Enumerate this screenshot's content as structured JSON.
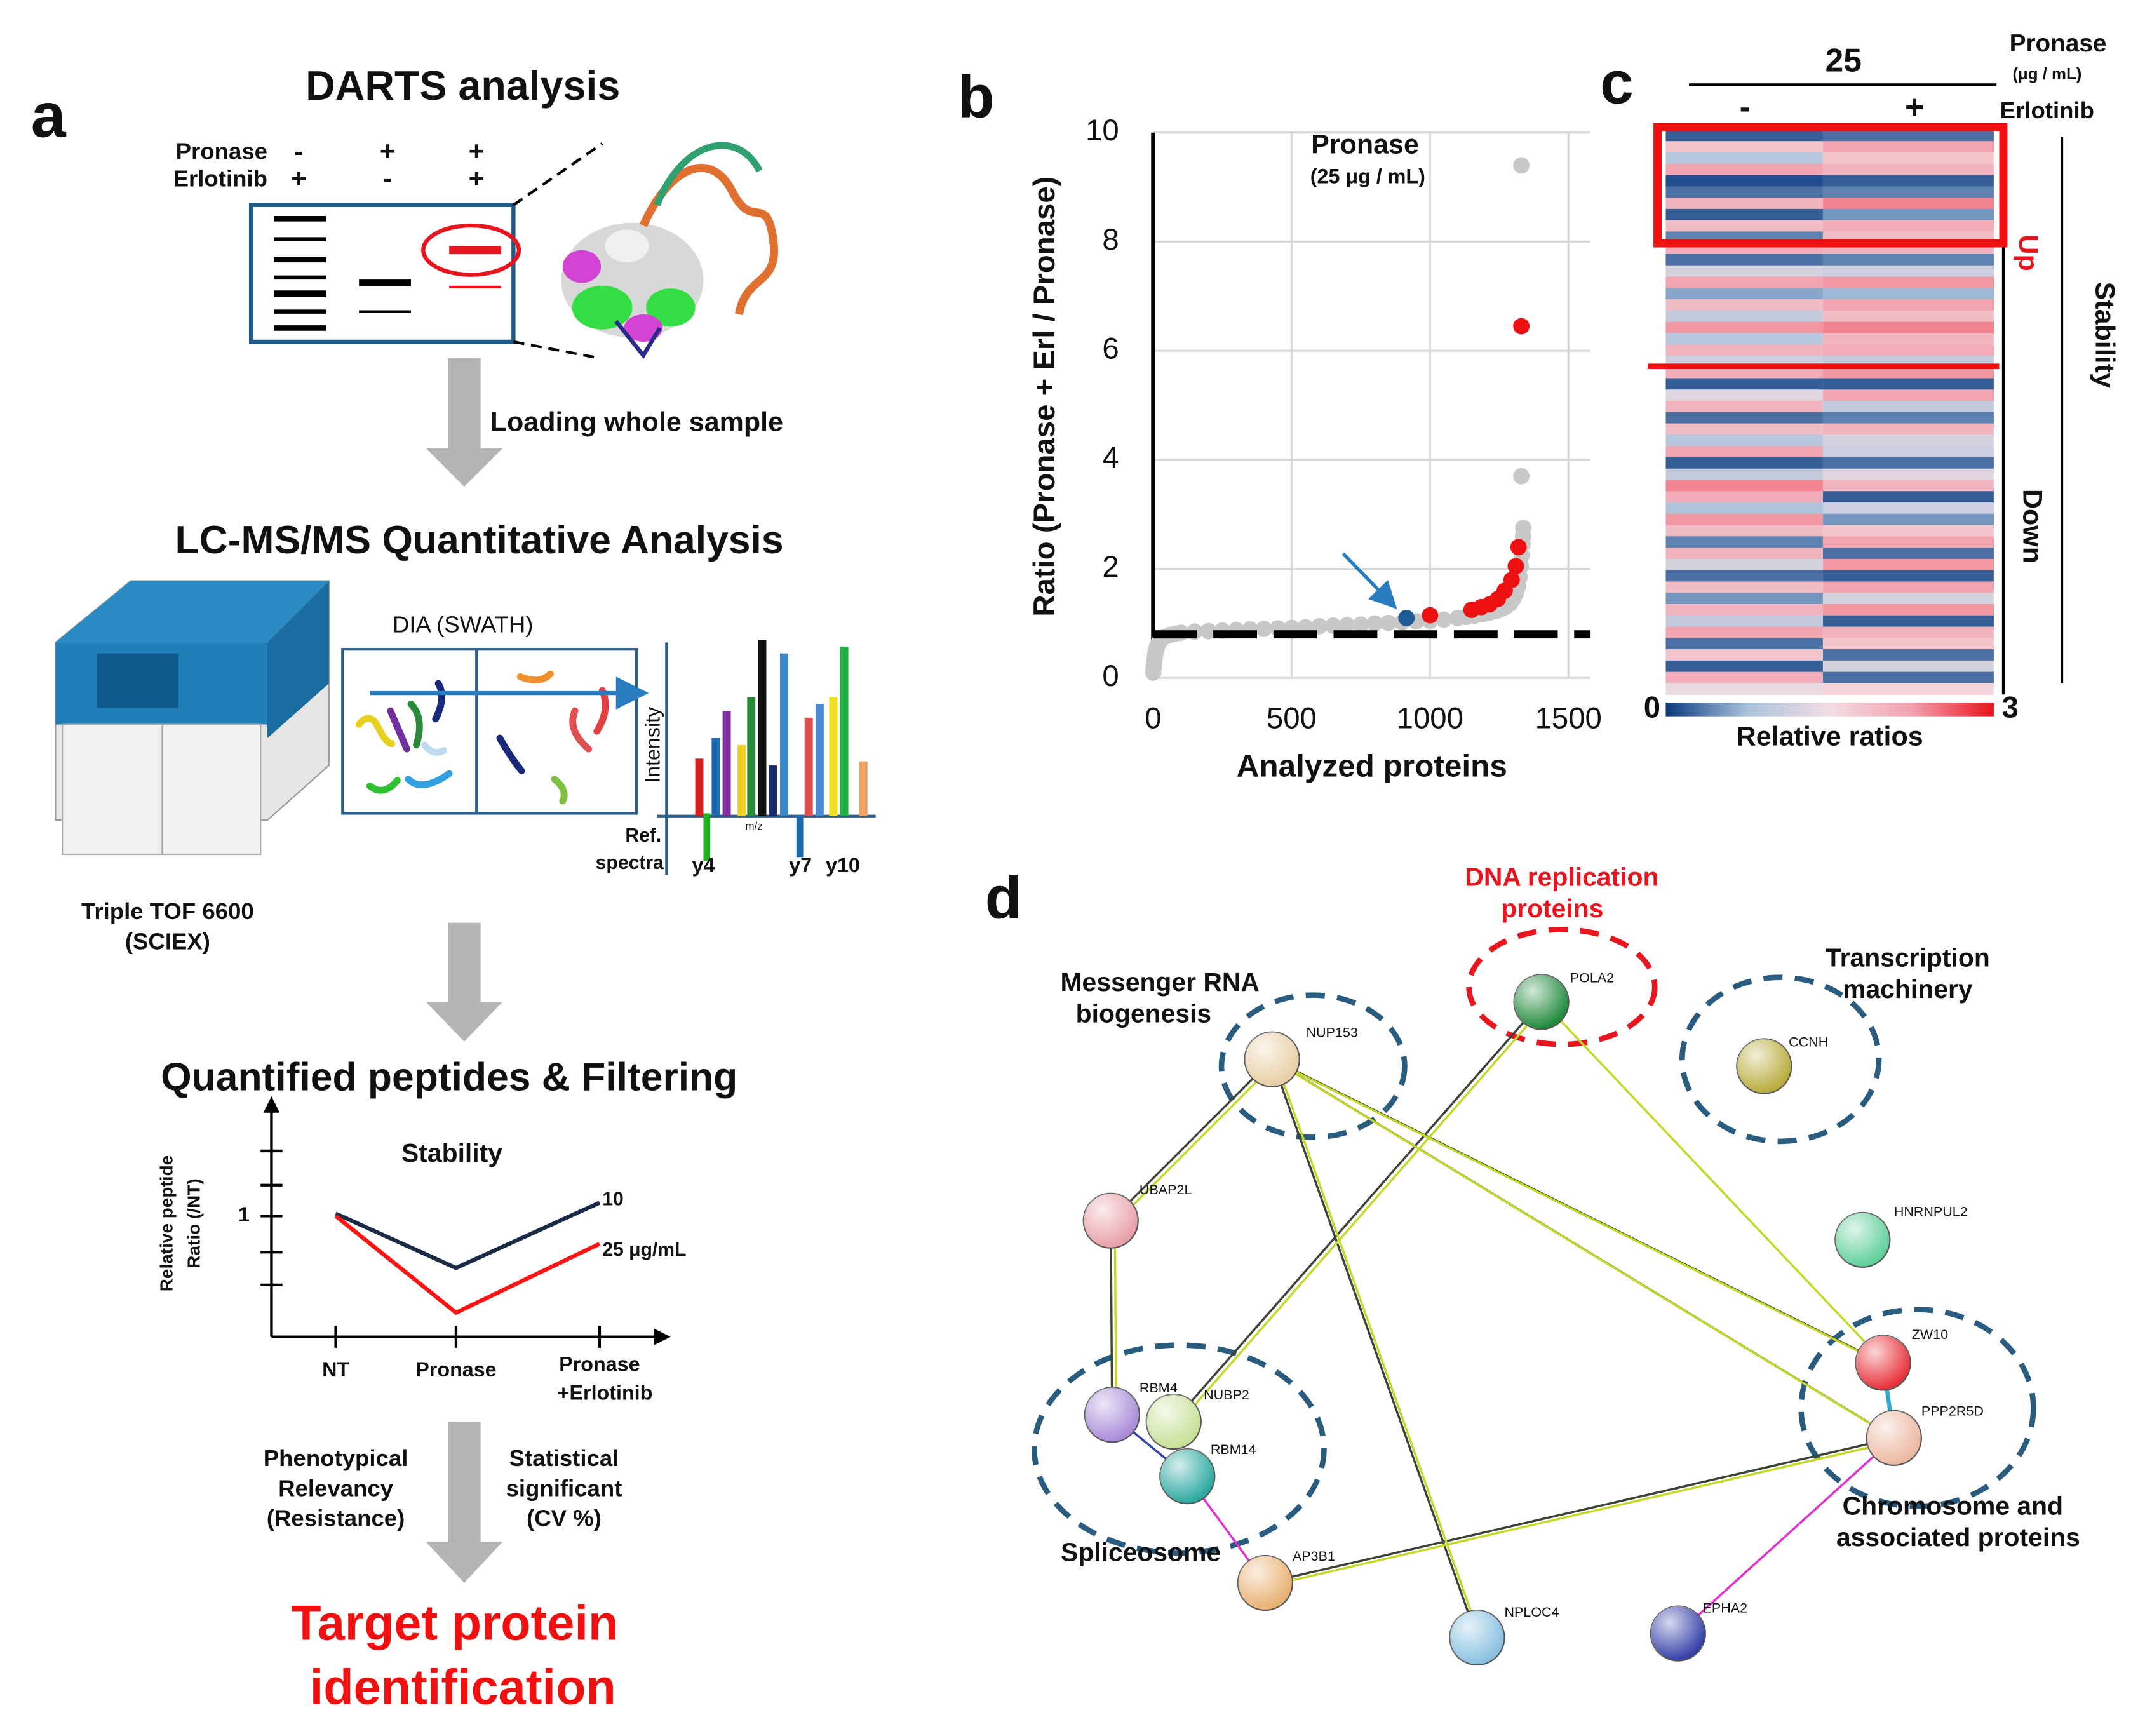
{
  "panel_a": {
    "label": "a",
    "title": "DARTS analysis",
    "gel_rows": [
      {
        "name": "Pronase",
        "marks": [
          "-",
          "+",
          "+"
        ]
      },
      {
        "name": "Erlotinib",
        "marks": [
          "+",
          "-",
          "+"
        ]
      }
    ],
    "step1": "Loading whole sample",
    "lcms_title": "LC-MS/MS Quantitative Analysis",
    "instrument": [
      "Triple TOF 6600",
      "(SCIEX)"
    ],
    "dia_title": "DIA (SWATH)",
    "spectrum": {
      "y_label": "Intensity",
      "x_label": "m/z",
      "ref": [
        "Ref.",
        "spectra"
      ],
      "ions": [
        "y4",
        "y7",
        "y10"
      ]
    },
    "filter_title": "Quantified peptides & Filtering",
    "criteria_left": [
      "Phenotypical",
      "Relevancy",
      "(Resistance)"
    ],
    "criteria_right": [
      "Statistical",
      "significant",
      "(CV %)"
    ],
    "result": [
      "Target protein",
      "identification"
    ]
  },
  "chart_data": [
    {
      "type": "line",
      "title": "Stability",
      "y_label": [
        "Relative peptide",
        "Ratio (/NT)"
      ],
      "categories": [
        "NT",
        "Pronase",
        [
          "Pronase",
          "+Erlotinib"
        ]
      ],
      "ylim": [
        0,
        1.9
      ],
      "yticks": [
        1
      ],
      "series": [
        {
          "name": "10",
          "color": "#1b2b45",
          "values": [
            1.02,
            0.57,
            1.11
          ]
        },
        {
          "name": "25 μg/mL",
          "color": "#ff1414",
          "values": [
            1.0,
            0.2,
            0.77
          ]
        }
      ]
    },
    {
      "type": "scatter",
      "panel_label": "b",
      "y_label": "Ratio (Pronase + Erl / Pronase)",
      "x_label": "Analyzed proteins",
      "annotation": [
        "Pronase",
        "(25 μg / mL)"
      ],
      "xlim": [
        0,
        1580
      ],
      "ylim": [
        0,
        10
      ],
      "xticks": [
        0,
        500,
        1000,
        1500
      ],
      "yticks": [
        0,
        2,
        4,
        6,
        8,
        10
      ],
      "grid": true,
      "threshold": 0.8,
      "series": [
        {
          "color": "#c8c8c8",
          "x": [
            0,
            2,
            4,
            6,
            8,
            10,
            13,
            16,
            20,
            25,
            30,
            40,
            50,
            60,
            80,
            100,
            150,
            200,
            250,
            300,
            350,
            400,
            450,
            500,
            550,
            600,
            650,
            700,
            750,
            800,
            850,
            900,
            950,
            1000,
            1050,
            1100,
            1130,
            1160,
            1190,
            1215,
            1240,
            1260,
            1275,
            1290,
            1300,
            1310,
            1318,
            1324,
            1328,
            1331,
            1334,
            1336,
            1337,
            1330,
            1330
          ],
          "values": [
            0.1,
            0.2,
            0.3,
            0.38,
            0.45,
            0.5,
            0.55,
            0.6,
            0.64,
            0.68,
            0.71,
            0.75,
            0.77,
            0.79,
            0.81,
            0.83,
            0.85,
            0.86,
            0.87,
            0.88,
            0.89,
            0.9,
            0.91,
            0.92,
            0.93,
            0.95,
            0.96,
            0.97,
            0.98,
            1.0,
            1.01,
            1.02,
            1.04,
            1.05,
            1.07,
            1.1,
            1.12,
            1.14,
            1.17,
            1.2,
            1.23,
            1.27,
            1.31,
            1.37,
            1.45,
            1.55,
            1.68,
            1.85,
            2.05,
            2.25,
            2.45,
            2.6,
            2.75,
            3.7,
            9.4
          ]
        },
        {
          "color": "#ee1111",
          "x": [
            1000,
            1150,
            1185,
            1215,
            1245,
            1270,
            1295,
            1310,
            1320,
            1330
          ],
          "values": [
            1.15,
            1.25,
            1.3,
            1.35,
            1.45,
            1.6,
            1.8,
            2.05,
            2.4,
            6.45
          ]
        },
        {
          "color": "#1f5c96",
          "x": [
            915
          ],
          "values": [
            1.1
          ]
        }
      ]
    },
    {
      "type": "heatmap",
      "panel_label": "c",
      "dose": "25",
      "treatment": [
        "Pronase",
        "(μg / mL)"
      ],
      "row_label": "Erlotinib",
      "groups": [
        "Up",
        "Down"
      ],
      "side_label": "Stability",
      "colorbar_label": "Relative ratios",
      "vlim": [
        0,
        3
      ],
      "colorbar_ticks": [
        0,
        3
      ],
      "color_stops": [
        "#0b3a7e",
        "#a9c2dc",
        "#f3dde2",
        "#f2a0ae",
        "#e8141e"
      ],
      "columns": [
        {
          "label": "-",
          "values": [
            0.2,
            1.8,
            0.9,
            2.2,
            0.1,
            0.3,
            2.0,
            0.2,
            1.9,
            0.4,
            2.1,
            0.3,
            1.2,
            2.2,
            0.6,
            1.9,
            1.0,
            2.3,
            0.9,
            2.0,
            1.1,
            2.1,
            0.2,
            1.3,
            2.0,
            0.3,
            1.9,
            0.9,
            2.2,
            0.2,
            1.0,
            2.4,
            2.1,
            0.8,
            2.3,
            1.9,
            0.4,
            2.0,
            1.2,
            0.3,
            1.9,
            0.5,
            2.0,
            1.0,
            2.2,
            0.3,
            1.8,
            0.2,
            2.1,
            1.4
          ]
        },
        {
          "label": "+",
          "values": [
            0.3,
            2.2,
            1.8,
            2.0,
            0.2,
            0.4,
            2.4,
            0.5,
            2.1,
            1.9,
            2.0,
            0.4,
            1.1,
            2.3,
            0.7,
            2.2,
            1.9,
            2.4,
            2.0,
            2.1,
            1.0,
            2.3,
            0.2,
            2.2,
            1.0,
            0.4,
            2.0,
            1.2,
            1.1,
            0.3,
            1.3,
            2.0,
            0.2,
            1.1,
            0.5,
            1.8,
            2.2,
            0.3,
            2.3,
            0.2,
            2.2,
            1.2,
            2.3,
            0.2,
            2.0,
            1.8,
            0.3,
            1.2,
            0.3,
            1.6
          ]
        }
      ]
    }
  ],
  "panel_d": {
    "label": "d",
    "groups": [
      [
        "DNA replication",
        "proteins"
      ],
      [
        "Transcription",
        "machinery"
      ],
      [
        "Messenger RNA",
        "biogenesis"
      ],
      [
        "Spliceosome"
      ],
      [
        "Chromosome and",
        "associated proteins"
      ]
    ],
    "nodes": [
      {
        "label": "NUP153",
        "color": "#e8cfa4"
      },
      {
        "label": "POLA2",
        "color": "#1f8a3a"
      },
      {
        "label": "CCNH",
        "color": "#b8ac3c"
      },
      {
        "label": "UBAP2L",
        "color": "#e8a0a8"
      },
      {
        "label": "HNRNPUL2",
        "color": "#5fd09a"
      },
      {
        "label": "ZW10",
        "color": "#e83038"
      },
      {
        "label": "PPP2R5D",
        "color": "#ecb8a0"
      },
      {
        "label": "RBM4",
        "color": "#a88ad8"
      },
      {
        "label": "NUBP2",
        "color": "#c8e098"
      },
      {
        "label": "RBM14",
        "color": "#2aa8a0"
      },
      {
        "label": "AP3B1",
        "color": "#e8b070"
      },
      {
        "label": "NPLOC4",
        "color": "#88c0e0"
      },
      {
        "label": "EPHA2",
        "color": "#3440a8"
      }
    ]
  }
}
